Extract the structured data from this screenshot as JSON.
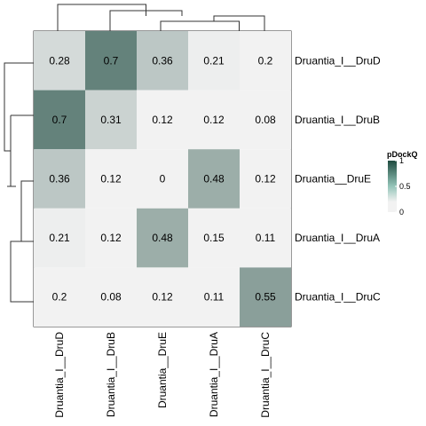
{
  "chart_data": {
    "type": "heatmap",
    "rows": [
      "Druantia_I__DruD",
      "Druantia_I__DruB",
      "Druantia__DruE",
      "Druantia_I__DruA",
      "Druantia_I__DruC"
    ],
    "columns": [
      "Druantia_I__DruD",
      "Druantia_I__DruB",
      "Druantia__DruE",
      "Druantia_I__DruA",
      "Druantia_I__DruC"
    ],
    "values": [
      [
        0.28,
        0.7,
        0.36,
        0.21,
        0.2
      ],
      [
        0.7,
        0.31,
        0.12,
        0.12,
        0.08
      ],
      [
        0.36,
        0.12,
        0,
        0.48,
        0.12
      ],
      [
        0.21,
        0.12,
        0.48,
        0.15,
        0.11
      ],
      [
        0.2,
        0.08,
        0.12,
        0.11,
        0.55
      ]
    ],
    "cell_labels": [
      [
        "0.28",
        "0.7",
        "0.36",
        "0.21",
        "0.2"
      ],
      [
        "0.7",
        "0.31",
        "0.12",
        "0.12",
        "0.08"
      ],
      [
        "0.36",
        "0.12",
        "0",
        "0.48",
        "0.12"
      ],
      [
        "0.21",
        "0.12",
        "0.48",
        "0.15",
        "0.11"
      ],
      [
        "0.2",
        "0.08",
        "0.12",
        "0.11",
        "0.55"
      ]
    ],
    "legend": {
      "title": "pDockQ",
      "ticks": [
        1,
        0.5,
        0
      ],
      "tick_labels": [
        "1",
        "0.5",
        "0"
      ],
      "range": [
        0,
        1
      ],
      "placement": "right"
    },
    "color_scale": {
      "low": "#f2f2f2",
      "high": "#1f4b40",
      "threshold": 0.2
    },
    "dendrograms": {
      "rows": true,
      "columns": true
    }
  }
}
